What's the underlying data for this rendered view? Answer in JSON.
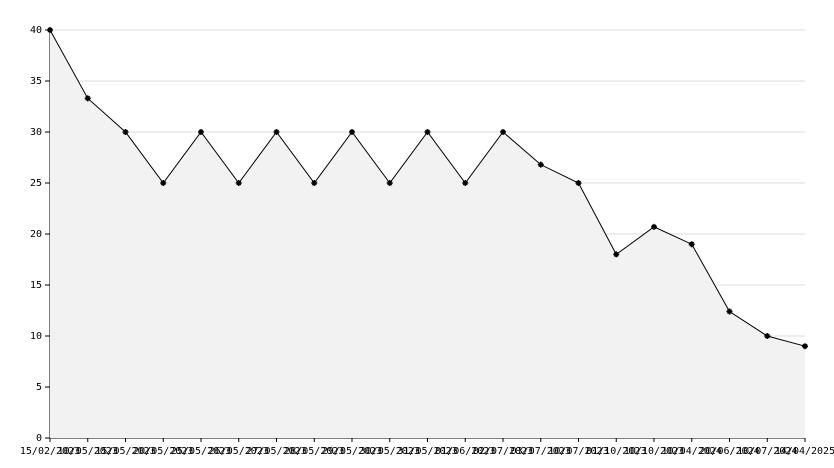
{
  "chart_data": {
    "type": "line",
    "categories": [
      "15/02/2023",
      "10/05/2023",
      "15/05/2023",
      "20/05/2023",
      "25/05/2023",
      "26/05/2023",
      "27/05/2023",
      "28/05/2023",
      "29/05/2023",
      "30/05/2023",
      "31/05/2023",
      "01/06/2023",
      "02/07/2023",
      "03/07/2023",
      "10/07/2023",
      "01/10/2023",
      "10/10/2023",
      "10/04/2024",
      "20/06/2024",
      "10/07/2024",
      "14/04/2025"
    ],
    "series": [
      {
        "color": "#000000",
        "fill": "#f2f2f2",
        "values": [
          40,
          33.3,
          30,
          25,
          30,
          25,
          30,
          25,
          30,
          25,
          30,
          25,
          30,
          26.8,
          25,
          18,
          20.7,
          19,
          12.4,
          10,
          9
        ]
      }
    ],
    "ylim": [
      0,
      40
    ],
    "yticks": [
      0,
      5,
      10,
      15,
      20,
      25,
      30,
      35,
      40
    ],
    "grid": true
  }
}
